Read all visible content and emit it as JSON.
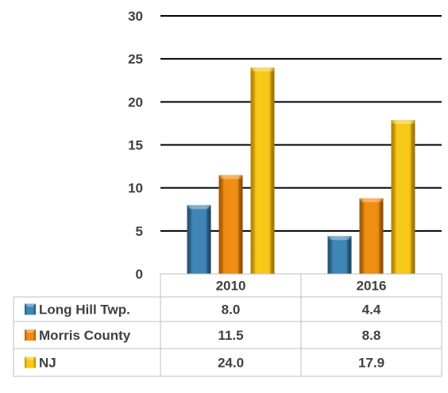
{
  "chart_data": {
    "type": "bar",
    "categories": [
      "2010",
      "2016"
    ],
    "series": [
      {
        "name": "Long Hill Twp.",
        "values": [
          8.0,
          4.4
        ],
        "labels": [
          "8.0",
          "4.4"
        ],
        "color": "#3a7ca8"
      },
      {
        "name": "Morris County",
        "values": [
          11.5,
          8.8
        ],
        "labels": [
          "11.5",
          "8.8"
        ],
        "color": "#e8840c"
      },
      {
        "name": "NJ",
        "values": [
          24.0,
          17.9
        ],
        "labels": [
          "24.0",
          "17.9"
        ],
        "color": "#f2bd0a"
      }
    ],
    "ylim": [
      0,
      30
    ],
    "yticks": [
      0,
      5,
      10,
      15,
      20,
      25,
      30
    ],
    "grid": true,
    "legend": "data-table"
  }
}
